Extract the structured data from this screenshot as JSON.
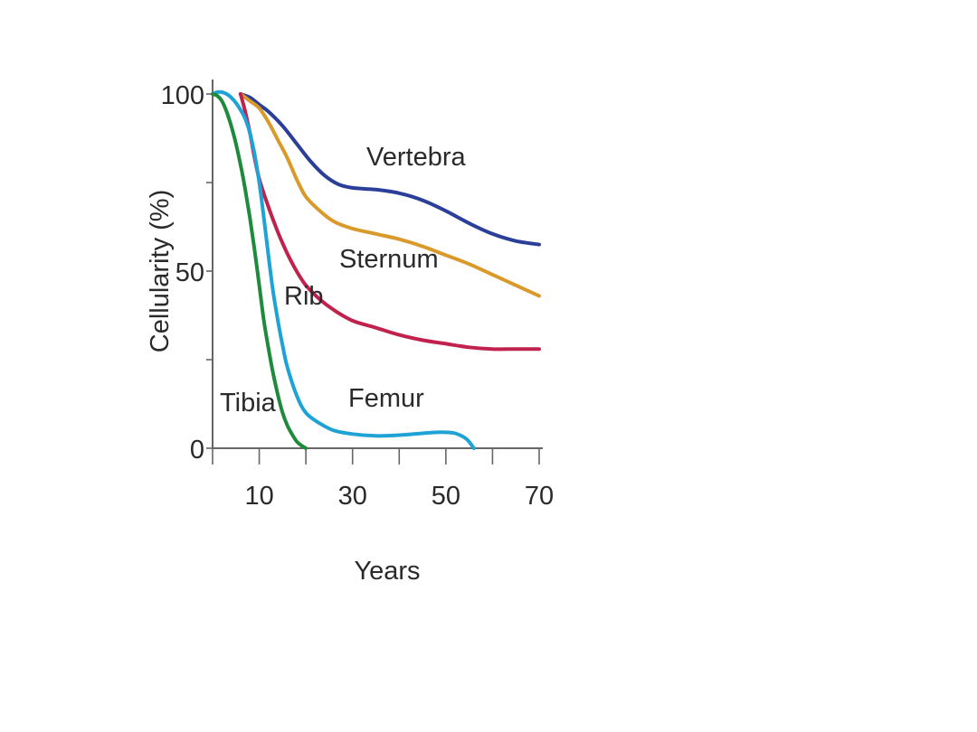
{
  "chart_data": {
    "type": "line",
    "title": "",
    "xlabel": "Years",
    "ylabel": "Cellularity (%)",
    "xlim": [
      0,
      70
    ],
    "ylim": [
      0,
      100
    ],
    "x_ticks": [
      0,
      10,
      20,
      30,
      40,
      50,
      60,
      70
    ],
    "x_tick_labels": [
      "10",
      "30",
      "50",
      "70"
    ],
    "x_tick_label_values": [
      10,
      30,
      50,
      70
    ],
    "y_ticks": [
      0,
      25,
      50,
      75,
      100
    ],
    "y_tick_labels": [
      "0",
      "50",
      "100"
    ],
    "y_tick_label_values": [
      0,
      50,
      100
    ],
    "grid": false,
    "legend": "none",
    "series": [
      {
        "name": "Vertebra",
        "color": "#2b3f98",
        "x": [
          6,
          8,
          10,
          12,
          15,
          18,
          21,
          24,
          27,
          30,
          35,
          40,
          45,
          50,
          55,
          60,
          65,
          70
        ],
        "y": [
          100,
          99,
          97,
          95,
          91,
          86,
          81,
          77,
          74.5,
          73.5,
          73,
          72,
          70,
          67,
          63.5,
          60.5,
          58.5,
          57.5
        ]
      },
      {
        "name": "Sternum",
        "color": "#d99a2b",
        "x": [
          6,
          8,
          10,
          12,
          14,
          16,
          18,
          20,
          23,
          26,
          30,
          35,
          40,
          45,
          50,
          55,
          60,
          65,
          70
        ],
        "y": [
          100,
          98,
          96,
          92,
          87,
          82,
          76,
          71,
          67,
          64,
          62,
          60.5,
          59,
          57,
          54.5,
          52,
          49,
          46,
          43
        ]
      },
      {
        "name": "Rib",
        "color": "#c1224d",
        "x": [
          6,
          7,
          8,
          9,
          10,
          12,
          14,
          16,
          18,
          20,
          23,
          26,
          30,
          35,
          40,
          45,
          50,
          55,
          60,
          65,
          70
        ],
        "y": [
          100,
          95,
          89,
          82,
          76,
          68,
          61,
          55,
          50,
          46,
          42,
          39,
          36,
          34,
          32,
          30.5,
          29.5,
          28.5,
          28,
          28,
          28
        ]
      },
      {
        "name": "Femur",
        "color": "#1fa3d6",
        "x": [
          0,
          1,
          2,
          3,
          4,
          5,
          6,
          7,
          8,
          9,
          10,
          11,
          12,
          13,
          14,
          15,
          16,
          18,
          20,
          23,
          26,
          30,
          35,
          40,
          45,
          48,
          50,
          52,
          54,
          55,
          56
        ],
        "y": [
          100,
          100.5,
          100.5,
          100,
          99,
          97.5,
          95.5,
          93,
          89,
          83,
          75,
          65,
          54,
          44,
          36,
          29,
          23,
          15,
          10,
          7,
          5,
          4,
          3.5,
          3.7,
          4.2,
          4.5,
          4.5,
          4.2,
          3,
          1.8,
          0
        ]
      },
      {
        "name": "Tibia",
        "color": "#1e8a3c",
        "x": [
          0,
          1,
          2,
          3,
          4,
          5,
          6,
          7,
          8,
          9,
          10,
          11,
          12,
          13,
          14,
          15,
          16,
          17,
          18,
          19,
          20
        ],
        "y": [
          100,
          99.5,
          98,
          95,
          91,
          86,
          80,
          73,
          65,
          56,
          46,
          36,
          28,
          21,
          15,
          10,
          6.5,
          4,
          2,
          0.8,
          0
        ]
      }
    ],
    "annotations": [
      {
        "text": "Vertebra",
        "series": "Vertebra"
      },
      {
        "text": "Sternum",
        "series": "Sternum"
      },
      {
        "text": "Rib",
        "series": "Rib"
      },
      {
        "text": "Femur",
        "series": "Femur"
      },
      {
        "text": "Tibia",
        "series": "Tibia"
      }
    ]
  }
}
